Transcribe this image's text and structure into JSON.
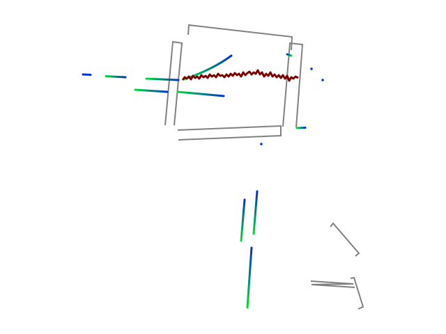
{
  "scene": {
    "background": "#ffffff",
    "colors": {
      "box_outline": "#808080",
      "trajectory": "#7a0000",
      "track_start": "#00dd33",
      "track_end": "#0033cc"
    }
  }
}
